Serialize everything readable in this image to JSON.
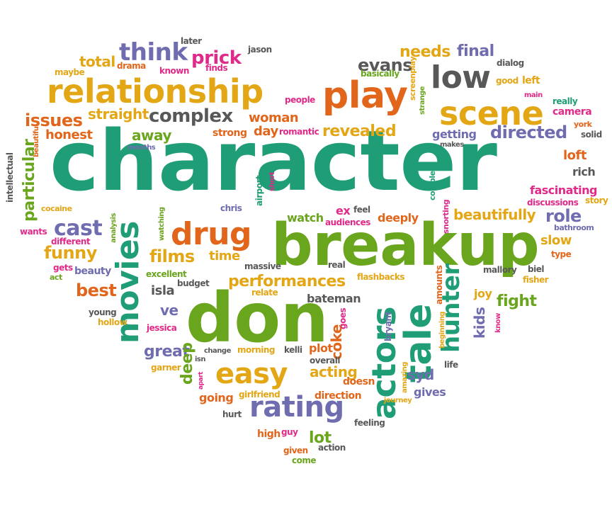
{
  "palette": {
    "green": "#1f9d76",
    "lime": "#6aa51e",
    "orange": "#e1661b",
    "gold": "#e3a615",
    "purple": "#6f6cb0",
    "pink": "#e02a8a",
    "gray": "#585858",
    "teal": "#1f9d76"
  },
  "words": [
    {
      "text": "character",
      "color": "green"
    },
    {
      "text": "breakup",
      "color": "lime"
    },
    {
      "text": "don",
      "color": "lime"
    },
    {
      "text": "relationship",
      "color": "gold"
    },
    {
      "text": "play",
      "color": "orange"
    },
    {
      "text": "low",
      "color": "gray"
    },
    {
      "text": "scene",
      "color": "gold"
    },
    {
      "text": "movies",
      "color": "green"
    },
    {
      "text": "drug",
      "color": "orange"
    },
    {
      "text": "actors",
      "color": "green"
    },
    {
      "text": "tale",
      "color": "green"
    },
    {
      "text": "easy",
      "color": "gold"
    },
    {
      "text": "rating",
      "color": "purple"
    },
    {
      "text": "hunter",
      "color": "green"
    },
    {
      "text": "think",
      "color": "purple"
    },
    {
      "text": "complex",
      "color": "gray"
    },
    {
      "text": "prick",
      "color": "pink"
    },
    {
      "text": "evans",
      "color": "gray"
    },
    {
      "text": "needs",
      "color": "gold"
    },
    {
      "text": "final",
      "color": "purple"
    },
    {
      "text": "directed",
      "color": "purple"
    },
    {
      "text": "revealed",
      "color": "gold"
    },
    {
      "text": "woman",
      "color": "orange"
    },
    {
      "text": "day",
      "color": "orange"
    },
    {
      "text": "strong",
      "color": "orange"
    },
    {
      "text": "away",
      "color": "lime"
    },
    {
      "text": "straight",
      "color": "gold"
    },
    {
      "text": "issues",
      "color": "orange"
    },
    {
      "text": "honest",
      "color": "orange"
    },
    {
      "text": "cast",
      "color": "purple"
    },
    {
      "text": "funny",
      "color": "gold"
    },
    {
      "text": "films",
      "color": "gold"
    },
    {
      "text": "time",
      "color": "gold"
    },
    {
      "text": "performances",
      "color": "gold"
    },
    {
      "text": "beautifully",
      "color": "gold"
    },
    {
      "text": "role",
      "color": "purple"
    },
    {
      "text": "fascinating",
      "color": "pink"
    },
    {
      "text": "slow",
      "color": "gold"
    },
    {
      "text": "fight",
      "color": "lime"
    },
    {
      "text": "best",
      "color": "orange"
    },
    {
      "text": "great",
      "color": "purple"
    },
    {
      "text": "deep",
      "color": "lime"
    },
    {
      "text": "acting",
      "color": "gold"
    },
    {
      "text": "syd",
      "color": "purple"
    },
    {
      "text": "kids",
      "color": "purple"
    },
    {
      "text": "coke",
      "color": "orange"
    },
    {
      "text": "lot",
      "color": "lime"
    },
    {
      "text": "loft",
      "color": "orange"
    },
    {
      "text": "total",
      "color": "gold"
    },
    {
      "text": "getting",
      "color": "purple"
    },
    {
      "text": "particular",
      "color": "lime"
    },
    {
      "text": "watch",
      "color": "lime"
    },
    {
      "text": "bateman",
      "color": "gray"
    },
    {
      "text": "ve",
      "color": "purple"
    },
    {
      "text": "isla",
      "color": "gray"
    },
    {
      "text": "going",
      "color": "orange"
    },
    {
      "text": "plot",
      "color": "orange"
    },
    {
      "text": "gives",
      "color": "purple"
    },
    {
      "text": "deeply",
      "color": "orange"
    },
    {
      "text": "rich",
      "color": "gray"
    },
    {
      "text": "joy",
      "color": "gold"
    },
    {
      "text": "later",
      "color": "gray"
    },
    {
      "text": "drama",
      "color": "orange"
    },
    {
      "text": "known",
      "color": "pink"
    },
    {
      "text": "finds",
      "color": "pink"
    },
    {
      "text": "jason",
      "color": "gray"
    },
    {
      "text": "maybe",
      "color": "gold"
    },
    {
      "text": "dialog",
      "color": "gray"
    },
    {
      "text": "good",
      "color": "gold"
    },
    {
      "text": "left",
      "color": "gold"
    },
    {
      "text": "basically",
      "color": "lime"
    },
    {
      "text": "people",
      "color": "pink"
    },
    {
      "text": "screenplay",
      "color": "gold"
    },
    {
      "text": "really",
      "color": "green"
    },
    {
      "text": "main",
      "color": "pink"
    },
    {
      "text": "camera",
      "color": "pink"
    },
    {
      "text": "york",
      "color": "orange"
    },
    {
      "text": "solid",
      "color": "gray"
    },
    {
      "text": "romantic",
      "color": "pink"
    },
    {
      "text": "months",
      "color": "purple"
    },
    {
      "text": "makes",
      "color": "gray"
    },
    {
      "text": "strange",
      "color": "lime"
    },
    {
      "text": "beautiful",
      "color": "orange"
    },
    {
      "text": "intellectual",
      "color": "gray"
    },
    {
      "text": "cocaine",
      "color": "gold"
    },
    {
      "text": "wants",
      "color": "pink"
    },
    {
      "text": "different",
      "color": "pink"
    },
    {
      "text": "watching",
      "color": "lime"
    },
    {
      "text": "analysis",
      "color": "lime"
    },
    {
      "text": "chris",
      "color": "purple"
    },
    {
      "text": "airport",
      "color": "green"
    },
    {
      "text": "short",
      "color": "pink"
    },
    {
      "text": "ex",
      "color": "pink"
    },
    {
      "text": "feel",
      "color": "gray"
    },
    {
      "text": "audiences",
      "color": "pink"
    },
    {
      "text": "complete",
      "color": "green"
    },
    {
      "text": "snorting",
      "color": "pink"
    },
    {
      "text": "discussions",
      "color": "pink"
    },
    {
      "text": "story",
      "color": "gold"
    },
    {
      "text": "bathroom",
      "color": "purple"
    },
    {
      "text": "type",
      "color": "orange"
    },
    {
      "text": "gets",
      "color": "pink"
    },
    {
      "text": "act",
      "color": "lime"
    },
    {
      "text": "beauty",
      "color": "purple"
    },
    {
      "text": "excellent",
      "color": "lime"
    },
    {
      "text": "budget",
      "color": "gray"
    },
    {
      "text": "massive",
      "color": "gray"
    },
    {
      "text": "real",
      "color": "gray"
    },
    {
      "text": "relate",
      "color": "gold"
    },
    {
      "text": "flashbacks",
      "color": "gold"
    },
    {
      "text": "amounts",
      "color": "orange"
    },
    {
      "text": "mallory",
      "color": "gray"
    },
    {
      "text": "biel",
      "color": "gray"
    },
    {
      "text": "fisher",
      "color": "gold"
    },
    {
      "text": "young",
      "color": "gray"
    },
    {
      "text": "hollow",
      "color": "gold"
    },
    {
      "text": "jessica",
      "color": "pink"
    },
    {
      "text": "change",
      "color": "gray"
    },
    {
      "text": "morning",
      "color": "gold"
    },
    {
      "text": "kelli",
      "color": "gray"
    },
    {
      "text": "isn",
      "color": "gray"
    },
    {
      "text": "apart",
      "color": "pink"
    },
    {
      "text": "garner",
      "color": "gold"
    },
    {
      "text": "overall",
      "color": "gray"
    },
    {
      "text": "goes",
      "color": "pink"
    },
    {
      "text": "bryant",
      "color": "purple"
    },
    {
      "text": "amazing",
      "color": "gold"
    },
    {
      "text": "beginning",
      "color": "gold"
    },
    {
      "text": "life",
      "color": "gray"
    },
    {
      "text": "know",
      "color": "pink"
    },
    {
      "text": "doesn",
      "color": "orange"
    },
    {
      "text": "direction",
      "color": "orange"
    },
    {
      "text": "journey",
      "color": "gold"
    },
    {
      "text": "girlfriend",
      "color": "gold"
    },
    {
      "text": "hurt",
      "color": "gray"
    },
    {
      "text": "high",
      "color": "orange"
    },
    {
      "text": "guy",
      "color": "pink"
    },
    {
      "text": "feeling",
      "color": "gray"
    },
    {
      "text": "given",
      "color": "orange"
    },
    {
      "text": "action",
      "color": "gray"
    },
    {
      "text": "come",
      "color": "lime"
    }
  ]
}
